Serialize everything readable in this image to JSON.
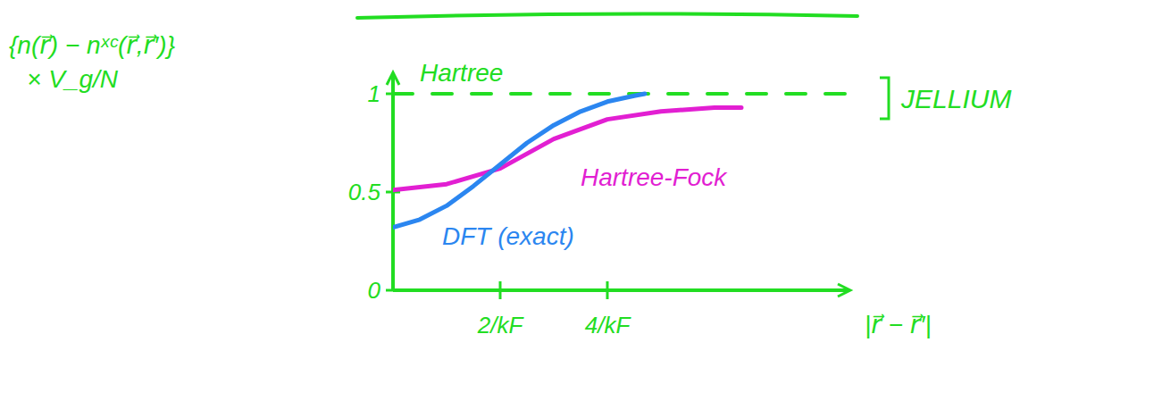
{
  "chart_data": {
    "type": "line",
    "ylabel": "{n(r⃗) − nˣᶜ(r⃗,r⃗′)} × V_g/N",
    "xlabel": "|r⃗ − r⃗′|",
    "annotations": [
      {
        "text": "JELLIUM"
      }
    ],
    "xlim": [
      0,
      8.5
    ],
    "xticks": [
      {
        "value": 2,
        "label": "2/kF"
      },
      {
        "value": 4,
        "label": "4/kF"
      }
    ],
    "ylim": [
      0,
      1.1
    ],
    "yticks": [
      0,
      0.5,
      1
    ],
    "tick_labels": true,
    "grid": false,
    "series": [
      {
        "name": "Hartree",
        "color": "#22dd22",
        "line_style": "dashed",
        "x": [
          0,
          8.5
        ],
        "values": [
          1,
          1
        ]
      },
      {
        "name": "Hartree-Fock",
        "color": "#e21fd2",
        "line_style": "solid",
        "x": [
          0,
          1,
          2,
          3,
          4,
          5,
          6,
          6.5
        ],
        "values": [
          0.51,
          0.54,
          0.62,
          0.77,
          0.87,
          0.91,
          0.93,
          0.93
        ]
      },
      {
        "name": "DFT (exact)",
        "color": "#2b86f0",
        "line_style": "solid",
        "x": [
          0,
          0.5,
          1,
          1.5,
          2,
          2.5,
          3,
          3.5,
          4,
          4.5,
          4.7
        ],
        "values": [
          0.32,
          0.36,
          0.43,
          0.53,
          0.64,
          0.75,
          0.84,
          0.91,
          0.96,
          0.99,
          1.0
        ]
      }
    ]
  }
}
